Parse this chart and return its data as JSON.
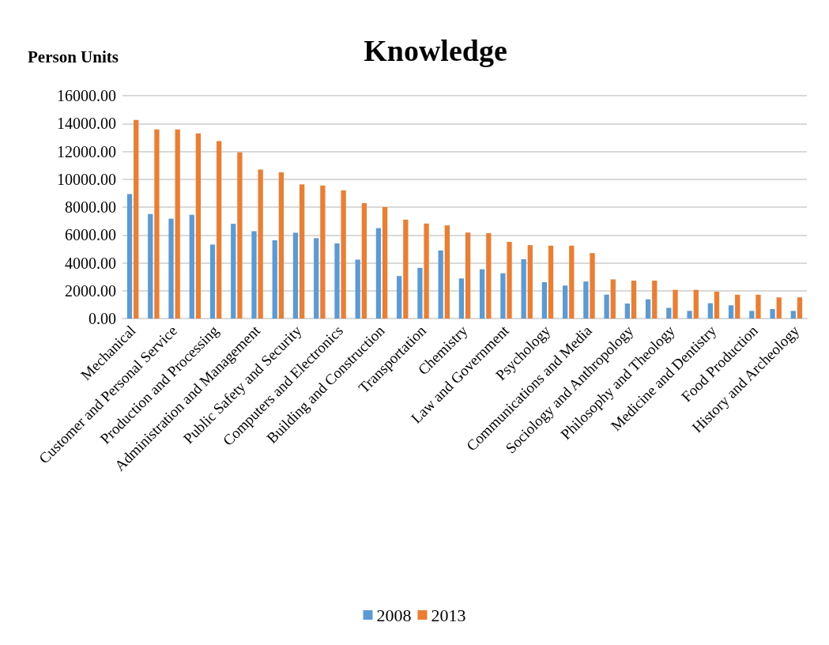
{
  "chart_data": {
    "type": "bar",
    "title": "Knowledge",
    "ylabel": "Person Units",
    "categories": [
      "Mechanical",
      null,
      "Customer and Personal Service",
      null,
      "Production and Processing",
      null,
      "Administration and Management",
      null,
      "Public Safety and Security",
      null,
      "Computers and Electronics",
      null,
      "Building and Construction",
      null,
      "Transportation",
      null,
      "Chemistry",
      null,
      "Law and Government",
      null,
      "Psychology",
      null,
      "Communications and Media",
      null,
      "Sociology and Anthropology",
      null,
      "Philosophy and Theology",
      null,
      "Medicine and Dentistry",
      null,
      "Food Production",
      null,
      "History and Archeology"
    ],
    "series": [
      {
        "name": "2008",
        "color": "#5b9bd5",
        "values": [
          8930,
          7500,
          7170,
          7440,
          5310,
          6800,
          6270,
          5620,
          6160,
          5770,
          5400,
          4230,
          6490,
          3050,
          3640,
          4890,
          2880,
          3540,
          3250,
          4260,
          2610,
          2370,
          2660,
          1720,
          1080,
          1380,
          770,
          550,
          1100,
          950,
          550,
          680,
          550
        ]
      },
      {
        "name": "2013",
        "color": "#ed7d31",
        "values": [
          14260,
          13570,
          13570,
          13290,
          12740,
          11930,
          10700,
          10500,
          9630,
          9540,
          9210,
          8290,
          8000,
          7100,
          6820,
          6690,
          6170,
          6130,
          5500,
          5270,
          5230,
          5230,
          4700,
          2810,
          2720,
          2720,
          2060,
          2060,
          1930,
          1710,
          1710,
          1520,
          1520
        ]
      }
    ],
    "ylim": [
      0,
      16000
    ],
    "yticks": [
      {
        "value": 0,
        "label": "0.00"
      },
      {
        "value": 2000,
        "label": "2000.00"
      },
      {
        "value": 4000,
        "label": "4000.00"
      },
      {
        "value": 6000,
        "label": "6000.00"
      },
      {
        "value": 8000,
        "label": "8000.00"
      },
      {
        "value": 10000,
        "label": "10000.00"
      },
      {
        "value": 12000,
        "label": "12000.00"
      },
      {
        "value": 14000,
        "label": "14000.00"
      },
      {
        "value": 16000,
        "label": "16000.00"
      }
    ],
    "grid": "y",
    "legend": "bottom"
  }
}
